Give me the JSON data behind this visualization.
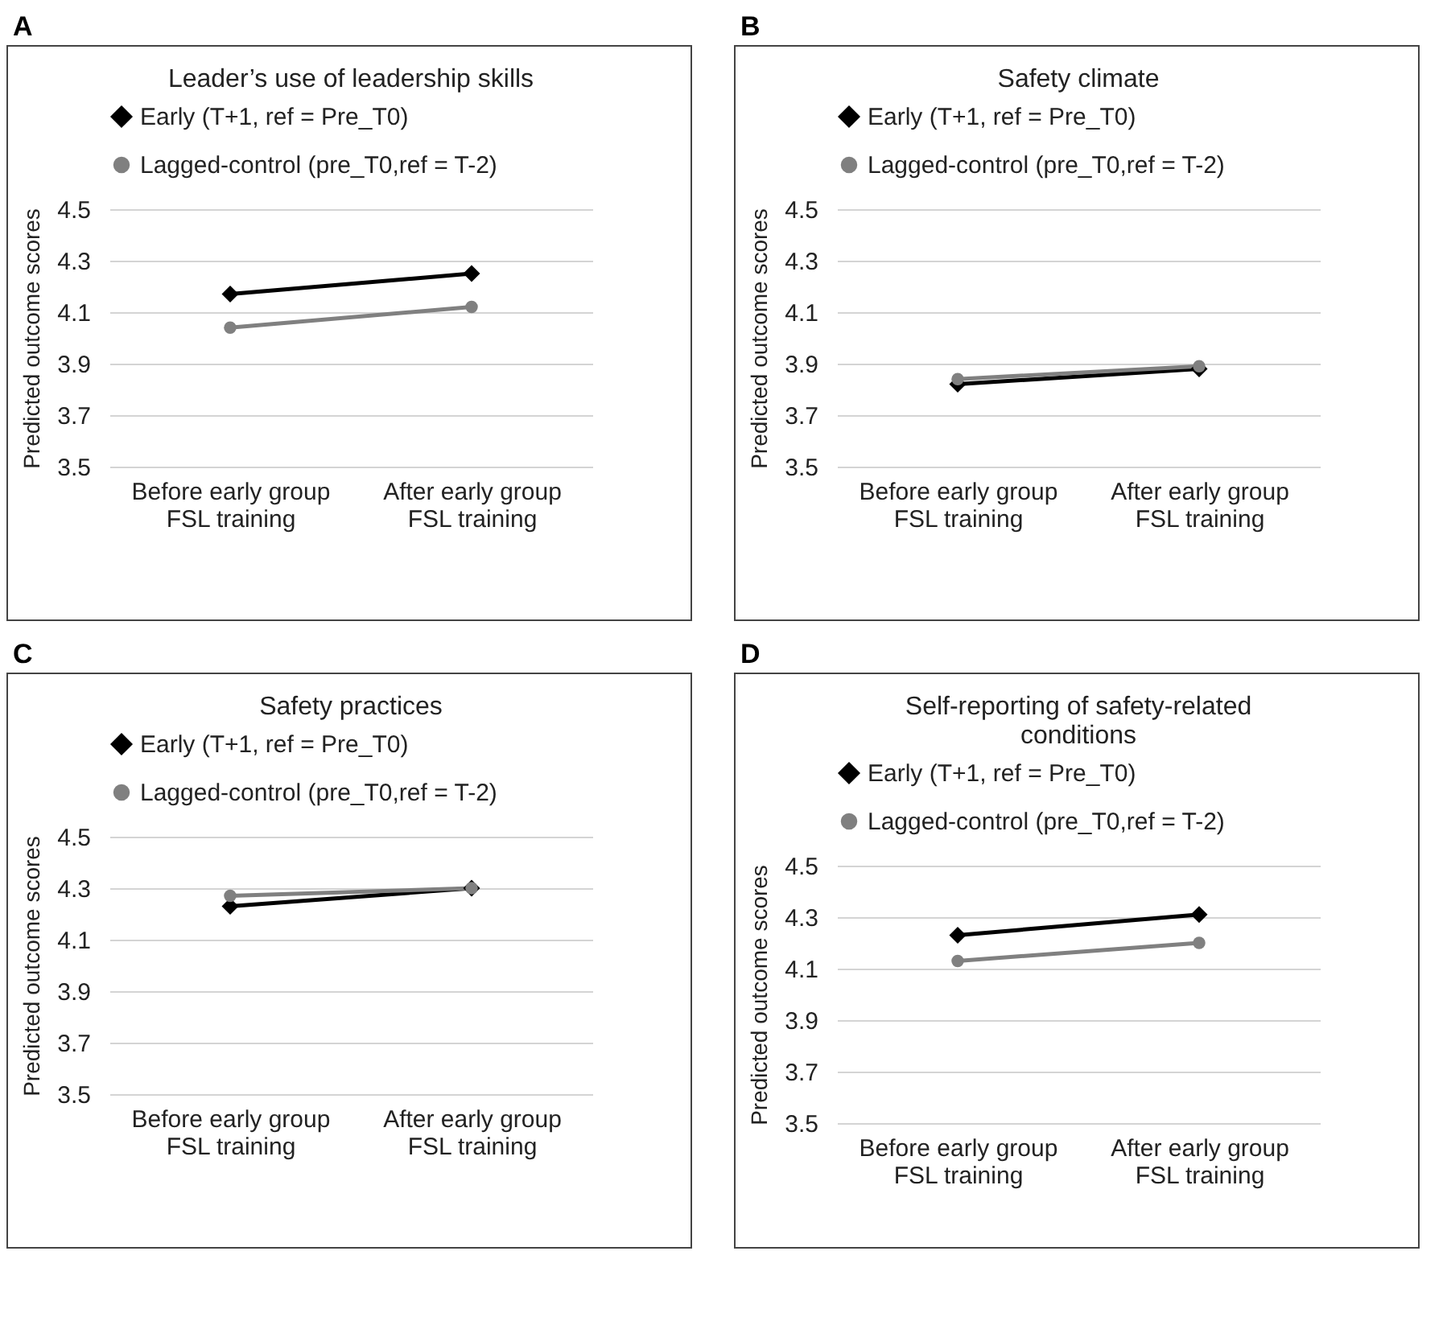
{
  "chart_data": [
    {
      "type": "line",
      "title": "Leader’s use of leadership skills",
      "annotations": [
        "A"
      ],
      "ylabel": "Predicted outcome scores",
      "categories": [
        "Before early group FSL training",
        "After early group FSL training"
      ],
      "ylim": [
        3.5,
        4.5
      ],
      "yticks": [
        3.5,
        3.7,
        3.9,
        4.1,
        4.3,
        4.5
      ],
      "grid": "y",
      "legend": "top left",
      "series": [
        {
          "name": "Early (T+1, ref = Pre_T0)",
          "color": "#000000",
          "marker": "diamond",
          "values": [
            4.17,
            4.25
          ]
        },
        {
          "name": "Lagged-control (pre_T0,ref = T-2)",
          "color": "#808080",
          "marker": "circle",
          "values": [
            4.04,
            4.12
          ]
        }
      ]
    },
    {
      "type": "line",
      "title": "Safety climate",
      "annotations": [
        "B"
      ],
      "ylabel": "Predicted outcome scores",
      "categories": [
        "Before early group FSL training",
        "After early group FSL training"
      ],
      "ylim": [
        3.5,
        4.5
      ],
      "yticks": [
        3.5,
        3.7,
        3.9,
        4.1,
        4.3,
        4.5
      ],
      "grid": "y",
      "legend": "top left",
      "series": [
        {
          "name": "Early (T+1, ref = Pre_T0)",
          "color": "#000000",
          "marker": "diamond",
          "values": [
            3.82,
            3.88
          ]
        },
        {
          "name": "Lagged-control (pre_T0,ref = T-2)",
          "color": "#808080",
          "marker": "circle",
          "values": [
            3.84,
            3.89
          ]
        }
      ]
    },
    {
      "type": "line",
      "title": "Safety practices",
      "annotations": [
        "C"
      ],
      "ylabel": "Predicted outcome scores",
      "categories": [
        "Before early group FSL training",
        "After early group FSL training"
      ],
      "ylim": [
        3.5,
        4.5
      ],
      "yticks": [
        3.5,
        3.7,
        3.9,
        4.1,
        4.3,
        4.5
      ],
      "grid": "y",
      "legend": "top left",
      "series": [
        {
          "name": "Early (T+1, ref = Pre_T0)",
          "color": "#000000",
          "marker": "diamond",
          "values": [
            4.23,
            4.3
          ]
        },
        {
          "name": "Lagged-control (pre_T0,ref = T-2)",
          "color": "#808080",
          "marker": "circle",
          "values": [
            4.27,
            4.3
          ]
        }
      ]
    },
    {
      "type": "line",
      "title": "Self-reporting of safety-related conditions",
      "annotations": [
        "D"
      ],
      "ylabel": "Predicted outcome scores",
      "categories": [
        "Before early group FSL training",
        "After early group FSL training"
      ],
      "ylim": [
        3.5,
        4.5
      ],
      "yticks": [
        3.5,
        3.7,
        3.9,
        4.1,
        4.3,
        4.5
      ],
      "grid": "y",
      "legend": "top left",
      "series": [
        {
          "name": "Early (T+1, ref = Pre_T0)",
          "color": "#000000",
          "marker": "diamond",
          "values": [
            4.23,
            4.31
          ]
        },
        {
          "name": "Lagged-control (pre_T0,ref = T-2)",
          "color": "#808080",
          "marker": "circle",
          "values": [
            4.13,
            4.2
          ]
        }
      ]
    }
  ]
}
